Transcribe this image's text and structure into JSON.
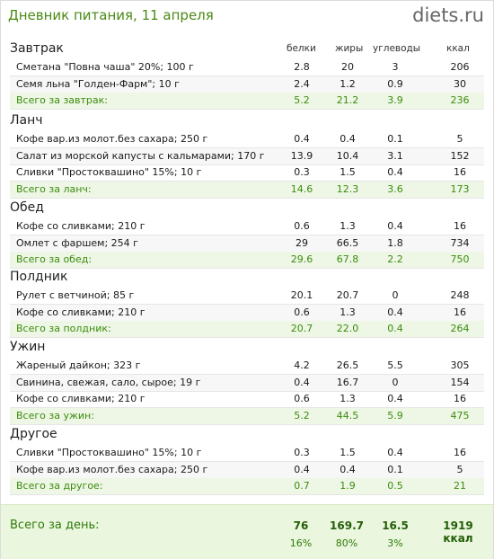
{
  "header": {
    "title": "Дневник питания, 11 апреля",
    "logo_main": "diets",
    "logo_tld": ".ru"
  },
  "columns": [
    "белки",
    "жиры",
    "углеводы",
    "ккал"
  ],
  "sections": [
    {
      "name": "Завтрак",
      "items": [
        {
          "name": "Сметана \"Повна чаша\" 20%; 100 г",
          "protein": "2.8",
          "fat": "20",
          "carbs": "3",
          "kcal": "206"
        },
        {
          "name": "Семя льна \"Голден-Фарм\"; 10 г",
          "protein": "2.4",
          "fat": "1.2",
          "carbs": "0.9",
          "kcal": "30"
        }
      ],
      "total": {
        "label": "Всего за завтрак:",
        "protein": "5.2",
        "fat": "21.2",
        "carbs": "3.9",
        "kcal": "236"
      }
    },
    {
      "name": "Ланч",
      "items": [
        {
          "name": "Кофе вар.из молот.без сахара; 250 г",
          "protein": "0.4",
          "fat": "0.4",
          "carbs": "0.1",
          "kcal": "5"
        },
        {
          "name": "Салат из морской капусты с кальмарами; 170 г",
          "protein": "13.9",
          "fat": "10.4",
          "carbs": "3.1",
          "kcal": "152"
        },
        {
          "name": "Сливки \"Простоквашино\" 15%; 10 г",
          "protein": "0.3",
          "fat": "1.5",
          "carbs": "0.4",
          "kcal": "16"
        }
      ],
      "total": {
        "label": "Всего за ланч:",
        "protein": "14.6",
        "fat": "12.3",
        "carbs": "3.6",
        "kcal": "173"
      }
    },
    {
      "name": "Обед",
      "items": [
        {
          "name": "Кофе со сливками; 210 г",
          "protein": "0.6",
          "fat": "1.3",
          "carbs": "0.4",
          "kcal": "16"
        },
        {
          "name": "Омлет с фаршем; 254 г",
          "protein": "29",
          "fat": "66.5",
          "carbs": "1.8",
          "kcal": "734"
        }
      ],
      "total": {
        "label": "Всего за обед:",
        "protein": "29.6",
        "fat": "67.8",
        "carbs": "2.2",
        "kcal": "750"
      }
    },
    {
      "name": "Полдник",
      "items": [
        {
          "name": "Рулет с ветчиной; 85 г",
          "protein": "20.1",
          "fat": "20.7",
          "carbs": "0",
          "kcal": "248"
        },
        {
          "name": "Кофе со сливками; 210 г",
          "protein": "0.6",
          "fat": "1.3",
          "carbs": "0.4",
          "kcal": "16"
        }
      ],
      "total": {
        "label": "Всего за полдник:",
        "protein": "20.7",
        "fat": "22.0",
        "carbs": "0.4",
        "kcal": "264"
      }
    },
    {
      "name": "Ужин",
      "items": [
        {
          "name": "Жареный дайкон; 323 г",
          "protein": "4.2",
          "fat": "26.5",
          "carbs": "5.5",
          "kcal": "305"
        },
        {
          "name": "Свинина, свежая, сало, сырое; 19 г",
          "protein": "0.4",
          "fat": "16.7",
          "carbs": "0",
          "kcal": "154"
        },
        {
          "name": "Кофе со сливками; 210 г",
          "protein": "0.6",
          "fat": "1.3",
          "carbs": "0.4",
          "kcal": "16"
        }
      ],
      "total": {
        "label": "Всего за ужин:",
        "protein": "5.2",
        "fat": "44.5",
        "carbs": "5.9",
        "kcal": "475"
      }
    },
    {
      "name": "Другое",
      "items": [
        {
          "name": "Сливки \"Простоквашино\" 15%; 10 г",
          "protein": "0.3",
          "fat": "1.5",
          "carbs": "0.4",
          "kcal": "16"
        },
        {
          "name": "Кофе вар.из молот.без сахара; 250 г",
          "protein": "0.4",
          "fat": "0.4",
          "carbs": "0.1",
          "kcal": "5"
        }
      ],
      "total": {
        "label": "Всего за другое:",
        "protein": "0.7",
        "fat": "1.9",
        "carbs": "0.5",
        "kcal": "21"
      }
    }
  ],
  "day_total": {
    "label": "Всего за день:",
    "protein": "76",
    "fat": "169.7",
    "carbs": "16.5",
    "kcal": "1919 ккал",
    "protein_pct": "16%",
    "fat_pct": "80%",
    "carbs_pct": "3%"
  },
  "colors": {
    "title": "#4a8a14",
    "total_text": "#3c8d0d",
    "total_bg": "#eef6e6",
    "day_bg": "#eaf6de"
  }
}
